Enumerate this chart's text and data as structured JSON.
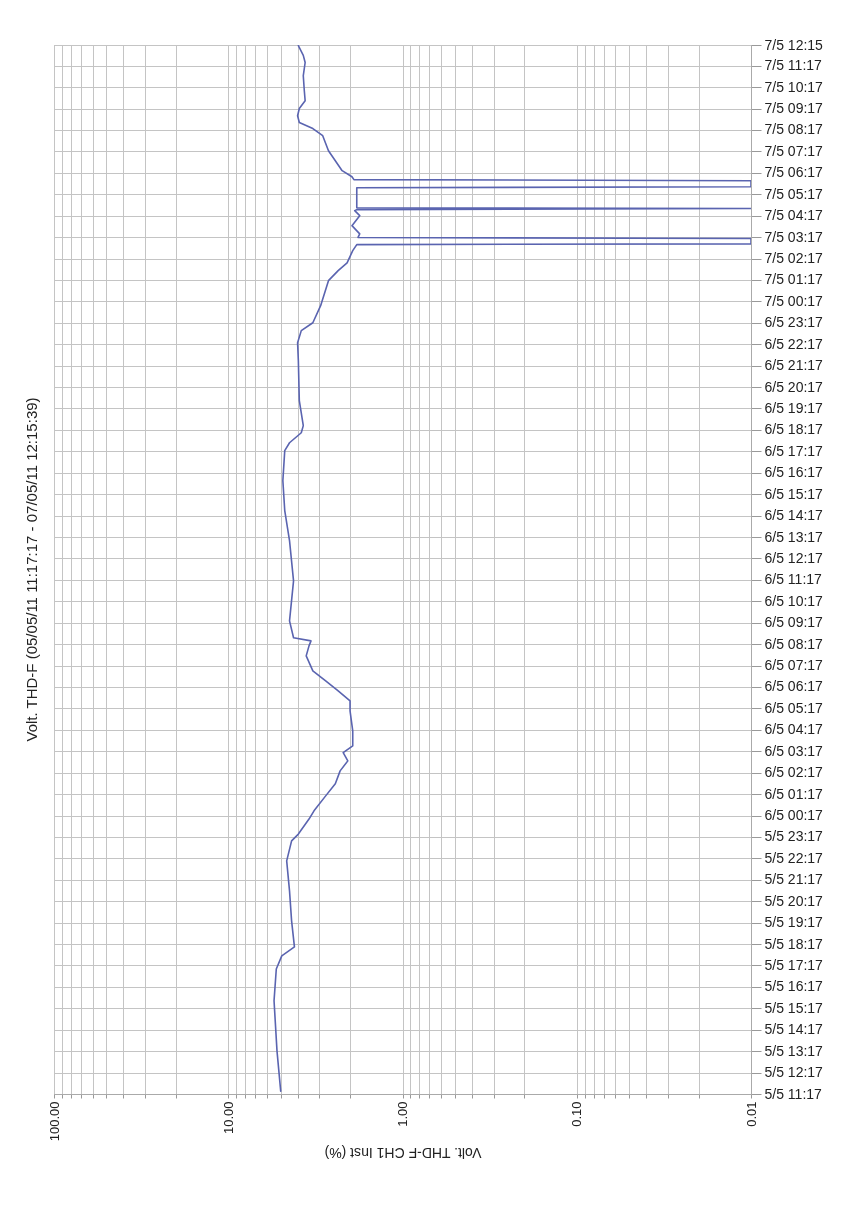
{
  "chart_data": {
    "type": "line",
    "title": "Volt. THD-F (05/05/11 11:17:17 - 07/05/11 12:15:39)",
    "xlabel": "Volt. THD-F CH1 Inst (%)",
    "orientation": "horizontal",
    "log": "x",
    "grid": true,
    "xlim": [
      100,
      0.01
    ],
    "xticks": [
      {
        "value": 100,
        "label": "100.00"
      },
      {
        "value": 90,
        "label": null
      },
      {
        "value": 80,
        "label": null
      },
      {
        "value": 70,
        "label": null
      },
      {
        "value": 60,
        "label": null
      },
      {
        "value": 50,
        "label": null
      },
      {
        "value": 40,
        "label": null
      },
      {
        "value": 30,
        "label": null
      },
      {
        "value": 20,
        "label": null
      },
      {
        "value": 10,
        "label": "10.00"
      },
      {
        "value": 9,
        "label": null
      },
      {
        "value": 8,
        "label": null
      },
      {
        "value": 7,
        "label": null
      },
      {
        "value": 6,
        "label": null
      },
      {
        "value": 5,
        "label": null
      },
      {
        "value": 4,
        "label": null
      },
      {
        "value": 3,
        "label": null
      },
      {
        "value": 2,
        "label": null
      },
      {
        "value": 1,
        "label": "1.00"
      },
      {
        "value": 0.9,
        "label": null
      },
      {
        "value": 0.8,
        "label": null
      },
      {
        "value": 0.7,
        "label": null
      },
      {
        "value": 0.6,
        "label": null
      },
      {
        "value": 0.5,
        "label": null
      },
      {
        "value": 0.4,
        "label": null
      },
      {
        "value": 0.3,
        "label": null
      },
      {
        "value": 0.2,
        "label": null
      },
      {
        "value": 0.1,
        "label": "0.10"
      },
      {
        "value": 0.09,
        "label": null
      },
      {
        "value": 0.08,
        "label": null
      },
      {
        "value": 0.07,
        "label": null
      },
      {
        "value": 0.06,
        "label": null
      },
      {
        "value": 0.05,
        "label": null
      },
      {
        "value": 0.04,
        "label": null
      },
      {
        "value": 0.03,
        "label": null
      },
      {
        "value": 0.02,
        "label": null
      },
      {
        "value": 0.01,
        "label": "0.01"
      }
    ],
    "ylim": [
      "--05-05T11:17",
      "--05-07T12:15"
    ],
    "yticks": [
      {
        "value": "--05-05T11:17",
        "label": "5/5 11:17"
      },
      {
        "value": "--05-05T12:17",
        "label": "5/5 12:17"
      },
      {
        "value": "--05-05T13:17",
        "label": "5/5 13:17"
      },
      {
        "value": "--05-05T14:17",
        "label": "5/5 14:17"
      },
      {
        "value": "--05-05T15:17",
        "label": "5/5 15:17"
      },
      {
        "value": "--05-05T16:17",
        "label": "5/5 16:17"
      },
      {
        "value": "--05-05T17:17",
        "label": "5/5 17:17"
      },
      {
        "value": "--05-05T18:17",
        "label": "5/5 18:17"
      },
      {
        "value": "--05-05T19:17",
        "label": "5/5 19:17"
      },
      {
        "value": "--05-05T20:17",
        "label": "5/5 20:17"
      },
      {
        "value": "--05-05T21:17",
        "label": "5/5 21:17"
      },
      {
        "value": "--05-05T22:17",
        "label": "5/5 22:17"
      },
      {
        "value": "--05-05T23:17",
        "label": "5/5 23:17"
      },
      {
        "value": "--05-06T00:17",
        "label": "6/5 00:17"
      },
      {
        "value": "--05-06T01:17",
        "label": "6/5 01:17"
      },
      {
        "value": "--05-06T02:17",
        "label": "6/5 02:17"
      },
      {
        "value": "--05-06T03:17",
        "label": "6/5 03:17"
      },
      {
        "value": "--05-06T04:17",
        "label": "6/5 04:17"
      },
      {
        "value": "--05-06T05:17",
        "label": "6/5 05:17"
      },
      {
        "value": "--05-06T06:17",
        "label": "6/5 06:17"
      },
      {
        "value": "--05-06T07:17",
        "label": "6/5 07:17"
      },
      {
        "value": "--05-06T08:17",
        "label": "6/5 08:17"
      },
      {
        "value": "--05-06T09:17",
        "label": "6/5 09:17"
      },
      {
        "value": "--05-06T10:17",
        "label": "6/5 10:17"
      },
      {
        "value": "--05-06T11:17",
        "label": "6/5 11:17"
      },
      {
        "value": "--05-06T12:17",
        "label": "6/5 12:17"
      },
      {
        "value": "--05-06T13:17",
        "label": "6/5 13:17"
      },
      {
        "value": "--05-06T14:17",
        "label": "6/5 14:17"
      },
      {
        "value": "--05-06T15:17",
        "label": "6/5 15:17"
      },
      {
        "value": "--05-06T16:17",
        "label": "6/5 16:17"
      },
      {
        "value": "--05-06T17:17",
        "label": "6/5 17:17"
      },
      {
        "value": "--05-06T18:17",
        "label": "6/5 18:17"
      },
      {
        "value": "--05-06T19:17",
        "label": "6/5 19:17"
      },
      {
        "value": "--05-06T20:17",
        "label": "6/5 20:17"
      },
      {
        "value": "--05-06T21:17",
        "label": "6/5 21:17"
      },
      {
        "value": "--05-06T22:17",
        "label": "6/5 22:17"
      },
      {
        "value": "--05-06T23:17",
        "label": "6/5 23:17"
      },
      {
        "value": "--05-07T00:17",
        "label": "7/5 00:17"
      },
      {
        "value": "--05-07T01:17",
        "label": "7/5 01:17"
      },
      {
        "value": "--05-07T02:17",
        "label": "7/5 02:17"
      },
      {
        "value": "--05-07T03:17",
        "label": "7/5 03:17"
      },
      {
        "value": "--05-07T04:17",
        "label": "7/5 04:17"
      },
      {
        "value": "--05-07T05:17",
        "label": "7/5 05:17"
      },
      {
        "value": "--05-07T06:17",
        "label": "7/5 06:17"
      },
      {
        "value": "--05-07T07:17",
        "label": "7/5 07:17"
      },
      {
        "value": "--05-07T08:17",
        "label": "7/5 08:17"
      },
      {
        "value": "--05-07T09:17",
        "label": "7/5 09:17"
      },
      {
        "value": "--05-07T10:17",
        "label": "7/5 10:17"
      },
      {
        "value": "--05-07T11:17",
        "label": "7/5 11:17"
      },
      {
        "value": "--05-07T12:15",
        "label": "7/5 12:15"
      }
    ],
    "x": [
      "--05-05T11:25",
      "--05-05T13:17",
      "--05-05T15:38",
      "--05-05T17:07",
      "--05-05T17:44",
      "--05-05T18:09",
      "--05-05T19:22",
      "--05-05T20:46",
      "--05-05T22:10",
      "--05-05T23:06",
      "--05-05T23:25",
      "--05-06T00:07",
      "--05-06T00:30",
      "--05-06T01:12",
      "--05-06T01:46",
      "--05-06T02:22",
      "--05-06T02:50",
      "--05-06T03:13",
      "--05-06T03:32",
      "--05-06T04:14",
      "--05-06T05:10",
      "--05-06T05:38",
      "--05-06T06:06",
      "--05-06T06:34",
      "--05-06T07:02",
      "--05-06T07:44",
      "--05-06T08:12",
      "--05-06T08:26",
      "--05-06T08:35",
      "--05-06T09:22",
      "--05-06T11:14",
      "--05-06T13:07",
      "--05-06T14:31",
      "--05-06T15:55",
      "--05-06T17:19",
      "--05-06T17:41",
      "--05-06T18:09",
      "--05-06T18:29",
      "--05-06T19:39",
      "--05-06T21:31",
      "--05-06T22:21",
      "--05-06T22:55",
      "--05-06T23:17",
      "--05-07T00:05",
      "--05-07T01:15",
      "--05-07T01:43",
      "--05-07T02:05",
      "--05-07T02:39",
      "--05-07T02:56",
      "--05-07T02:58",
      "--05-07T03:13",
      "--05-07T03:16",
      "--05-07T03:26",
      "--05-07T03:49",
      "--05-07T04:17",
      "--05-07T04:31",
      "--05-07T04:34",
      "--05-07T04:37",
      "--05-07T04:39",
      "--05-07T05:35",
      "--05-07T05:38",
      "--05-07T05:55",
      "--05-07T05:58",
      "--05-07T06:06",
      "--05-07T06:23",
      "--05-07T06:51",
      "--05-07T07:19",
      "--05-07T08:01",
      "--05-07T08:21",
      "--05-07T08:38",
      "--05-07T08:57",
      "--05-07T09:17",
      "--05-07T09:39",
      "--05-07T10:07",
      "--05-07T10:49",
      "--05-07T11:26",
      "--05-07T11:46",
      "--05-07T12:13"
    ],
    "series": [
      {
        "color": "#5a64b0",
        "values": [
          5.0,
          5.25,
          5.46,
          5.3,
          4.93,
          4.17,
          4.33,
          4.45,
          4.62,
          4.33,
          3.96,
          3.44,
          3.22,
          2.76,
          2.43,
          2.28,
          2.06,
          2.19,
          1.93,
          1.93,
          2.0,
          2.0,
          2.34,
          2.76,
          3.27,
          3.57,
          3.44,
          3.35,
          4.22,
          4.45,
          4.22,
          4.45,
          4.74,
          4.86,
          4.74,
          4.45,
          3.81,
          3.71,
          3.91,
          3.96,
          4.0,
          3.81,
          3.27,
          2.95,
          2.66,
          2.34,
          2.08,
          1.93,
          1.83,
          0.01,
          0.01,
          1.8,
          1.76,
          1.95,
          1.76,
          1.88,
          1.83,
          0.01,
          1.83,
          1.83,
          0.01,
          0.01,
          1.9,
          1.95,
          2.22,
          2.43,
          2.66,
          2.87,
          3.27,
          3.91,
          4.0,
          3.91,
          3.62,
          3.66,
          3.71,
          3.62,
          3.71,
          3.96
        ]
      }
    ]
  }
}
